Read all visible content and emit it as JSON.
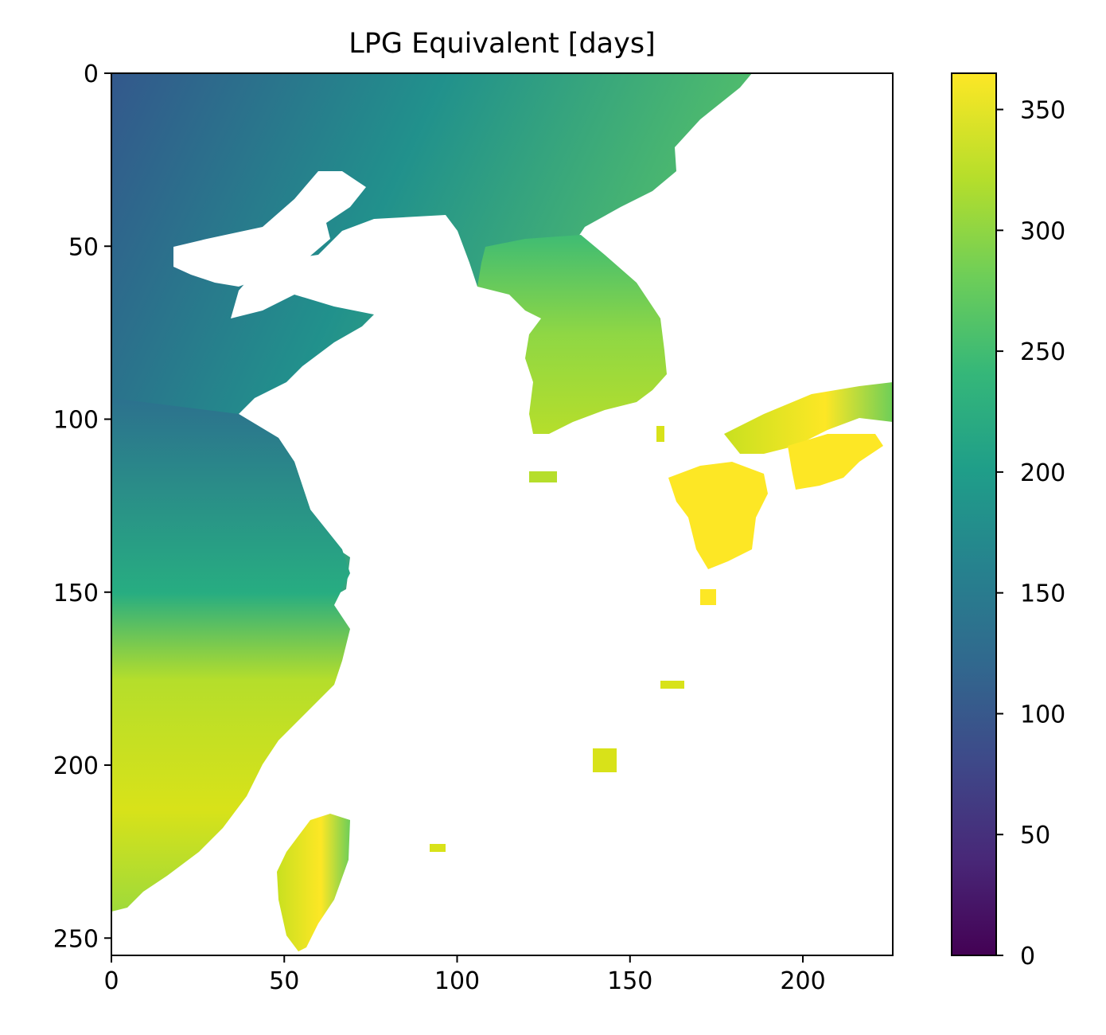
{
  "chart_data": {
    "type": "heatmap",
    "title": "LPG Equivalent [days]",
    "xlabel": "",
    "ylabel": "",
    "x_ticks": [
      0,
      50,
      100,
      150,
      200
    ],
    "y_ticks": [
      0,
      50,
      100,
      150,
      200,
      250
    ],
    "xlim": [
      0,
      226
    ],
    "ylim": [
      255,
      0
    ],
    "colorbar": {
      "ticks": [
        0,
        50,
        100,
        150,
        200,
        250,
        300,
        350
      ],
      "range": [
        0,
        365
      ],
      "colormap": "viridis"
    },
    "masked_color": "#ffffff",
    "value_regions": [
      {
        "region": "north-west interior",
        "approx_value": 110
      },
      {
        "region": "north plains",
        "approx_value": 190
      },
      {
        "region": "korean peninsula",
        "approx_value": 300
      },
      {
        "region": "south-west interior",
        "approx_value": 330
      },
      {
        "region": "southern islands",
        "approx_value": 355
      },
      {
        "region": "large southern island",
        "approx_value": 350
      }
    ]
  },
  "colors": {
    "viridis_stops": [
      "#440154",
      "#482878",
      "#3e4989",
      "#31688e",
      "#26828e",
      "#1f9e89",
      "#35b779",
      "#6ece58",
      "#b5de2b",
      "#fde725"
    ],
    "land_low": "#3b528b",
    "land_mid": "#21918c",
    "land_high": "#fde725"
  }
}
